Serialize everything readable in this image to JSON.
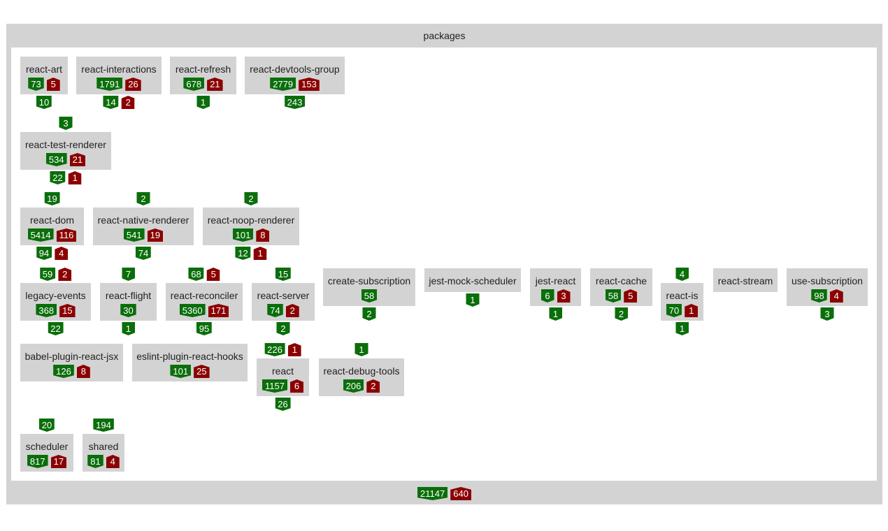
{
  "container": {
    "title": "packages",
    "total_in": "21147",
    "total_out": "640"
  },
  "packages": [
    {
      "name": "react-art",
      "in": "73",
      "out": "5",
      "top_in": "",
      "top_out": "",
      "bot_in": "10",
      "bot_out": ""
    },
    {
      "name": "react-interactions",
      "in": "1791",
      "out": "26",
      "top_in": "",
      "top_out": "",
      "bot_in": "14",
      "bot_out": "2"
    },
    {
      "name": "react-refresh",
      "in": "678",
      "out": "21",
      "top_in": "",
      "top_out": "",
      "bot_in": "1",
      "bot_out": ""
    },
    {
      "name": "react-devtools-group",
      "in": "2779",
      "out": "153",
      "top_in": "",
      "top_out": "",
      "bot_in": "243",
      "bot_out": ""
    },
    {
      "name": "react-test-renderer",
      "in": "534",
      "out": "21",
      "top_in": "3",
      "top_out": "",
      "bot_in": "22",
      "bot_out": "1"
    },
    {
      "name": "react-dom",
      "in": "5414",
      "out": "116",
      "top_in": "19",
      "top_out": "",
      "bot_in": "94",
      "bot_out": "4"
    },
    {
      "name": "react-native-renderer",
      "in": "541",
      "out": "19",
      "top_in": "2",
      "top_out": "",
      "bot_in": "74",
      "bot_out": ""
    },
    {
      "name": "react-noop-renderer",
      "in": "101",
      "out": "8",
      "top_in": "2",
      "top_out": "",
      "bot_in": "12",
      "bot_out": "1"
    },
    {
      "name": "legacy-events",
      "in": "368",
      "out": "15",
      "top_in": "59",
      "top_out": "2",
      "bot_in": "22",
      "bot_out": ""
    },
    {
      "name": "react-flight",
      "in": "30",
      "out": "",
      "top_in": "7",
      "top_out": "",
      "bot_in": "1",
      "bot_out": ""
    },
    {
      "name": "react-reconciler",
      "in": "5360",
      "out": "171",
      "top_in": "68",
      "top_out": "5",
      "bot_in": "95",
      "bot_out": ""
    },
    {
      "name": "react-server",
      "in": "74",
      "out": "2",
      "top_in": "15",
      "top_out": "",
      "bot_in": "2",
      "bot_out": ""
    },
    {
      "name": "create-subscription",
      "in": "58",
      "out": "",
      "top_in": "",
      "top_out": "",
      "bot_in": "2",
      "bot_out": ""
    },
    {
      "name": "jest-mock-scheduler",
      "in": "",
      "out": "",
      "top_in": "",
      "top_out": "",
      "bot_in": "1",
      "bot_out": ""
    },
    {
      "name": "jest-react",
      "in": "6",
      "out": "3",
      "top_in": "",
      "top_out": "",
      "bot_in": "1",
      "bot_out": ""
    },
    {
      "name": "react-cache",
      "in": "58",
      "out": "5",
      "top_in": "",
      "top_out": "",
      "bot_in": "2",
      "bot_out": ""
    },
    {
      "name": "react-is",
      "in": "70",
      "out": "1",
      "top_in": "4",
      "top_out": "",
      "bot_in": "1",
      "bot_out": ""
    },
    {
      "name": "react-stream",
      "in": "",
      "out": "",
      "top_in": "",
      "top_out": "",
      "bot_in": "",
      "bot_out": ""
    },
    {
      "name": "use-subscription",
      "in": "98",
      "out": "4",
      "top_in": "",
      "top_out": "",
      "bot_in": "3",
      "bot_out": ""
    },
    {
      "name": "babel-plugin-react-jsx",
      "in": "126",
      "out": "8",
      "top_in": "",
      "top_out": "",
      "bot_in": "",
      "bot_out": ""
    },
    {
      "name": "eslint-plugin-react-hooks",
      "in": "101",
      "out": "25",
      "top_in": "",
      "top_out": "",
      "bot_in": "",
      "bot_out": ""
    },
    {
      "name": "react",
      "in": "1157",
      "out": "6",
      "top_in": "226",
      "top_out": "1",
      "bot_in": "26",
      "bot_out": ""
    },
    {
      "name": "react-debug-tools",
      "in": "206",
      "out": "2",
      "top_in": "1",
      "top_out": "",
      "bot_in": "",
      "bot_out": ""
    },
    {
      "name": "scheduler",
      "in": "817",
      "out": "17",
      "top_in": "20",
      "top_out": "",
      "bot_in": "",
      "bot_out": ""
    },
    {
      "name": "shared",
      "in": "81",
      "out": "4",
      "top_in": "194",
      "top_out": "",
      "bot_in": "",
      "bot_out": ""
    }
  ]
}
